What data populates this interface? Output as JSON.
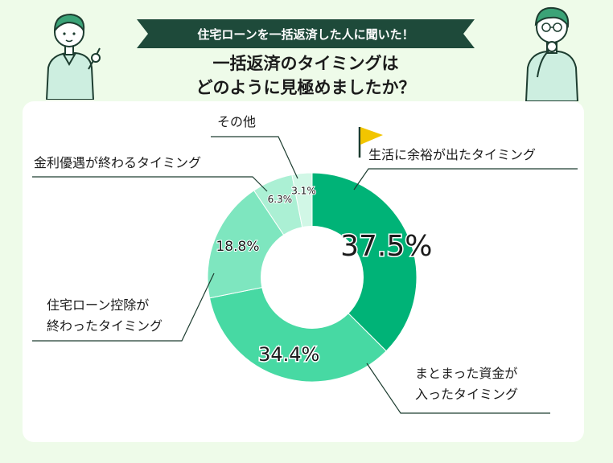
{
  "header": {
    "banner": "住宅ローンを一括返済した人に聞いた！",
    "title_line1": "一括返済のタイミングは",
    "title_line2": "どのように見極めましたか？"
  },
  "colors": {
    "background": "#eefbe9",
    "banner": "#1e4a3a",
    "flag": "#f2c500",
    "outline": "#1d3d30",
    "slices": [
      "#00b377",
      "#47d9a3",
      "#7ee6bf",
      "#abf0d4",
      "#d1f7e6"
    ]
  },
  "chart_data": {
    "type": "pie",
    "donut": true,
    "start": "12 o'clock, clockwise",
    "slices": [
      {
        "label": "生活に余裕が出たタイミング",
        "value": 37.5,
        "value_label": "37.5%"
      },
      {
        "label": "まとまった資金が入ったタイミング",
        "value": 34.4,
        "value_label": "34.4%"
      },
      {
        "label": "住宅ローン控除が終わったタイミング",
        "value": 18.8,
        "value_label": "18.8%"
      },
      {
        "label": "金利優遇が終わるタイミング",
        "value": 6.3,
        "value_label": "6.3%"
      },
      {
        "label": "その他",
        "value": 3.1,
        "value_label": "3.1%"
      }
    ],
    "callouts": [
      {
        "lines": [
          "生活に余裕が出たタイミング"
        ]
      },
      {
        "lines": [
          "まとまった資金が",
          "入ったタイミング"
        ]
      },
      {
        "lines": [
          "住宅ローン控除が",
          "終わったタイミング"
        ]
      },
      {
        "lines": [
          "金利優遇が終わるタイミング"
        ]
      },
      {
        "lines": [
          "その他"
        ]
      }
    ]
  }
}
